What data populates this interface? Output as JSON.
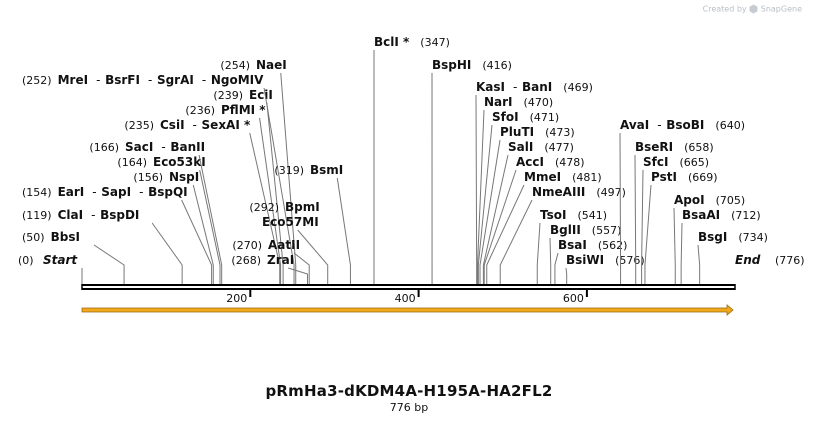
{
  "credit": {
    "prefix": "Created by",
    "brand": "SnapGene"
  },
  "title": "pRmHa3-dKDM4A-H195A-HA2FL2",
  "size_label": "776 bp",
  "sequence_length": 776,
  "ends": {
    "start": "Start",
    "start_pos": "(0)",
    "end": "End",
    "end_pos": "(776)"
  },
  "ruler_ticks": [
    200,
    400,
    600
  ],
  "colors": {
    "feature_arrow": "#f0a818",
    "feature_outline": "#9a6a12",
    "lines": "#777777",
    "backbone": "#000000"
  },
  "sites": [
    {
      "group": [
        "BbsI"
      ],
      "pos_label": "(50)",
      "pos": 50
    },
    {
      "group": [
        "ClaI",
        "BspDI"
      ],
      "pos_label": "(119)",
      "pos": 119
    },
    {
      "group": [
        "EarI",
        "SapI",
        "BspQI"
      ],
      "pos_label": "(154)",
      "pos": 154
    },
    {
      "group": [
        "NspI"
      ],
      "pos_label": "(156)",
      "pos": 156
    },
    {
      "group": [
        "Eco53kI"
      ],
      "pos_label": "(164)",
      "pos": 164
    },
    {
      "group": [
        "SacI",
        "BanII"
      ],
      "pos_label": "(166)",
      "pos": 166
    },
    {
      "group": [
        "CsiI",
        "SexAI *"
      ],
      "pos_label": "(235)",
      "pos": 235
    },
    {
      "group": [
        "PflMI *"
      ],
      "pos_label": "(236)",
      "pos": 236
    },
    {
      "group": [
        "EciI"
      ],
      "pos_label": "(239)",
      "pos": 239
    },
    {
      "group": [
        "MreI",
        "BsrFI",
        "SgrAI",
        "NgoMIV"
      ],
      "pos_label": "(252)",
      "pos": 252
    },
    {
      "group": [
        "NaeI"
      ],
      "pos_label": "(254)",
      "pos": 254
    },
    {
      "group": [
        "ZraI"
      ],
      "pos_label": "(268)",
      "pos": 268
    },
    {
      "group": [
        "AatII"
      ],
      "pos_label": "(270)",
      "pos": 270
    },
    {
      "group": [
        "BpmI",
        "Eco57MI"
      ],
      "pos_label": "(292)",
      "pos": 292
    },
    {
      "group": [
        "BsmI"
      ],
      "pos_label": "(319)",
      "pos": 319
    },
    {
      "group": [
        "BclI *"
      ],
      "pos_label": "(347)",
      "pos": 347
    },
    {
      "group": [
        "BspHI"
      ],
      "pos_label": "(416)",
      "pos": 416
    },
    {
      "group": [
        "KasI",
        "BanI"
      ],
      "pos_label": "(469)",
      "pos": 469
    },
    {
      "group": [
        "NarI"
      ],
      "pos_label": "(470)",
      "pos": 470
    },
    {
      "group": [
        "SfoI"
      ],
      "pos_label": "(471)",
      "pos": 471
    },
    {
      "group": [
        "PluTI"
      ],
      "pos_label": "(473)",
      "pos": 473
    },
    {
      "group": [
        "SalI"
      ],
      "pos_label": "(477)",
      "pos": 477
    },
    {
      "group": [
        "AccI"
      ],
      "pos_label": "(478)",
      "pos": 478
    },
    {
      "group": [
        "MmeI"
      ],
      "pos_label": "(481)",
      "pos": 481
    },
    {
      "group": [
        "NmeAIII"
      ],
      "pos_label": "(497)",
      "pos": 497
    },
    {
      "group": [
        "TsoI"
      ],
      "pos_label": "(541)",
      "pos": 541
    },
    {
      "group": [
        "BglII"
      ],
      "pos_label": "(557)",
      "pos": 557
    },
    {
      "group": [
        "BsaI"
      ],
      "pos_label": "(562)",
      "pos": 562
    },
    {
      "group": [
        "BsiWI"
      ],
      "pos_label": "(576)",
      "pos": 576
    },
    {
      "group": [
        "AvaI",
        "BsoBI"
      ],
      "pos_label": "(640)",
      "pos": 640
    },
    {
      "group": [
        "BseRI"
      ],
      "pos_label": "(658)",
      "pos": 658
    },
    {
      "group": [
        "SfcI"
      ],
      "pos_label": "(665)",
      "pos": 665
    },
    {
      "group": [
        "PstI"
      ],
      "pos_label": "(669)",
      "pos": 669
    },
    {
      "group": [
        "ApoI"
      ],
      "pos_label": "(705)",
      "pos": 705
    },
    {
      "group": [
        "BsaAI"
      ],
      "pos_label": "(712)",
      "pos": 712
    },
    {
      "group": [
        "BsgI"
      ],
      "pos_label": "(734)",
      "pos": 734
    }
  ]
}
